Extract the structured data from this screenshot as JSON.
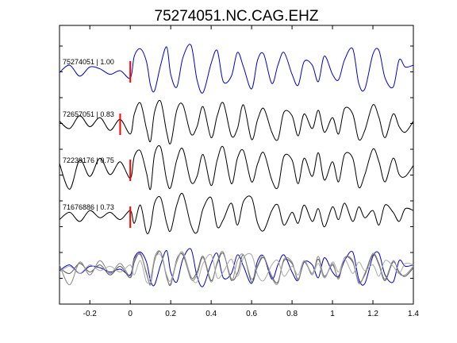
{
  "chart_data": {
    "type": "line",
    "title": "75274051.NC.CAG.EHZ",
    "xlabel": "",
    "ylabel": "",
    "xlim": [
      -0.35,
      1.4
    ],
    "xticks": [
      "-0.2",
      "0",
      "0.2",
      "0.4",
      "0.6",
      "0.8",
      "1",
      "1.2",
      "1.4"
    ],
    "grid": false,
    "legend": "none",
    "pick_color": "#ff0000",
    "traces": [
      {
        "label": "75274051 | 1.00",
        "color": "#0000cc",
        "pick_time": 0.0,
        "x": [
          -0.35,
          -0.3,
          -0.25,
          -0.2,
          -0.15,
          -0.1,
          -0.05,
          0.0,
          0.02,
          0.05,
          0.08,
          0.1,
          0.12,
          0.15,
          0.18,
          0.2,
          0.23,
          0.26,
          0.3,
          0.33,
          0.36,
          0.4,
          0.43,
          0.46,
          0.5,
          0.53,
          0.56,
          0.6,
          0.63,
          0.66,
          0.7,
          0.73,
          0.76,
          0.8,
          0.83,
          0.86,
          0.9,
          0.93,
          0.96,
          1.0,
          1.03,
          1.06,
          1.1,
          1.13,
          1.16,
          1.2,
          1.23,
          1.26,
          1.3,
          1.33,
          1.36,
          1.4
        ],
        "y": [
          -0.1,
          0.3,
          -0.3,
          0.2,
          0.1,
          -0.2,
          0.0,
          -0.4,
          0.8,
          1.2,
          0.5,
          -0.8,
          -1.1,
          0.3,
          1.3,
          -0.2,
          -0.9,
          0.7,
          1.4,
          -0.5,
          -1.2,
          0.4,
          1.1,
          -0.6,
          -0.3,
          1.0,
          0.2,
          -1.0,
          0.6,
          0.9,
          -0.7,
          0.3,
          1.0,
          -0.2,
          -0.8,
          0.5,
          0.3,
          -0.6,
          0.8,
          -0.2,
          -0.5,
          0.6,
          1.2,
          -0.7,
          -1.0,
          0.9,
          1.1,
          -0.4,
          -0.9,
          0.6,
          0.2,
          0.3
        ]
      },
      {
        "label": "72657051 | 0.83",
        "color": "#000000",
        "pick_time": -0.05,
        "x": [
          -0.35,
          -0.3,
          -0.25,
          -0.2,
          -0.15,
          -0.1,
          -0.05,
          0.0,
          0.02,
          0.05,
          0.08,
          0.1,
          0.12,
          0.15,
          0.18,
          0.2,
          0.23,
          0.26,
          0.3,
          0.33,
          0.36,
          0.4,
          0.43,
          0.46,
          0.5,
          0.53,
          0.56,
          0.6,
          0.63,
          0.66,
          0.7,
          0.73,
          0.76,
          0.8,
          0.83,
          0.86,
          0.9,
          0.93,
          0.96,
          1.0,
          1.03,
          1.06,
          1.1,
          1.13,
          1.16,
          1.2,
          1.23,
          1.26,
          1.3,
          1.33,
          1.36,
          1.4
        ],
        "y": [
          0.1,
          -0.3,
          0.4,
          -0.2,
          0.3,
          -0.4,
          0.2,
          -0.6,
          0.5,
          1.1,
          -0.3,
          -1.0,
          0.6,
          1.2,
          -0.5,
          -1.1,
          0.7,
          1.0,
          -0.6,
          -0.2,
          0.9,
          -0.8,
          0.4,
          1.1,
          -0.7,
          -0.3,
          1.0,
          -0.9,
          0.2,
          0.8,
          -0.5,
          -0.9,
          0.6,
          0.4,
          -0.7,
          0.5,
          -0.3,
          0.7,
          -0.5,
          0.3,
          -0.6,
          0.8,
          0.5,
          -0.9,
          -0.4,
          1.0,
          0.3,
          -0.8,
          0.5,
          -0.2,
          -0.5,
          0.1
        ]
      },
      {
        "label": "72239176 | 0.75",
        "color": "#000000",
        "pick_time": 0.0,
        "x": [
          -0.35,
          -0.3,
          -0.25,
          -0.2,
          -0.15,
          -0.1,
          -0.05,
          0.0,
          0.02,
          0.05,
          0.08,
          0.1,
          0.12,
          0.15,
          0.18,
          0.2,
          0.23,
          0.26,
          0.3,
          0.33,
          0.36,
          0.4,
          0.43,
          0.46,
          0.5,
          0.53,
          0.56,
          0.6,
          0.63,
          0.66,
          0.7,
          0.73,
          0.76,
          0.8,
          0.83,
          0.86,
          0.9,
          0.93,
          0.96,
          1.0,
          1.03,
          1.06,
          1.1,
          1.13,
          1.16,
          1.2,
          1.23,
          1.26,
          1.3,
          1.33,
          1.36,
          1.4
        ],
        "y": [
          0.3,
          -1.1,
          0.5,
          -0.4,
          0.6,
          -0.3,
          0.4,
          -0.5,
          0.7,
          1.0,
          -0.2,
          -1.1,
          0.8,
          1.2,
          -0.6,
          -1.0,
          0.5,
          1.1,
          -0.7,
          -0.4,
          0.8,
          -0.9,
          0.5,
          1.2,
          -0.8,
          0.6,
          1.0,
          -0.7,
          0.3,
          0.9,
          -0.6,
          -1.0,
          0.7,
          0.5,
          -0.8,
          0.6,
          -0.4,
          0.9,
          -0.6,
          0.4,
          -0.7,
          0.8,
          0.6,
          -1.0,
          -0.3,
          1.1,
          0.4,
          -0.7,
          0.6,
          -0.3,
          -0.4,
          0.2
        ]
      },
      {
        "label": "71676886 | 0.73",
        "color": "#000000",
        "pick_time": 0.0,
        "x": [
          -0.35,
          -0.3,
          -0.25,
          -0.2,
          -0.15,
          -0.1,
          -0.05,
          0.0,
          0.02,
          0.05,
          0.08,
          0.1,
          0.12,
          0.15,
          0.18,
          0.2,
          0.23,
          0.26,
          0.3,
          0.33,
          0.36,
          0.4,
          0.43,
          0.46,
          0.5,
          0.53,
          0.56,
          0.6,
          0.63,
          0.66,
          0.7,
          0.73,
          0.76,
          0.8,
          0.83,
          0.86,
          0.9,
          0.93,
          0.96,
          1.0,
          1.03,
          1.06,
          1.1,
          1.13,
          1.16,
          1.2,
          1.23,
          1.26,
          1.3,
          1.33,
          1.36,
          1.4
        ],
        "y": [
          -0.2,
          0.2,
          -0.3,
          0.3,
          -0.1,
          0.2,
          -0.2,
          0.3,
          -0.4,
          0.6,
          -0.9,
          -0.6,
          0.7,
          1.0,
          -0.4,
          -0.8,
          0.6,
          1.2,
          -0.5,
          -0.9,
          0.4,
          1.0,
          -0.6,
          -0.2,
          0.7,
          -0.5,
          0.8,
          1.0,
          -0.4,
          -0.8,
          0.3,
          0.6,
          -0.5,
          0.2,
          -0.4,
          0.6,
          -0.3,
          0.4,
          -0.6,
          0.5,
          -0.2,
          0.7,
          -0.3,
          0.5,
          -0.1,
          0.3,
          -0.5,
          0.6,
          0.2,
          -0.3,
          0.4,
          0.3
        ]
      }
    ]
  }
}
